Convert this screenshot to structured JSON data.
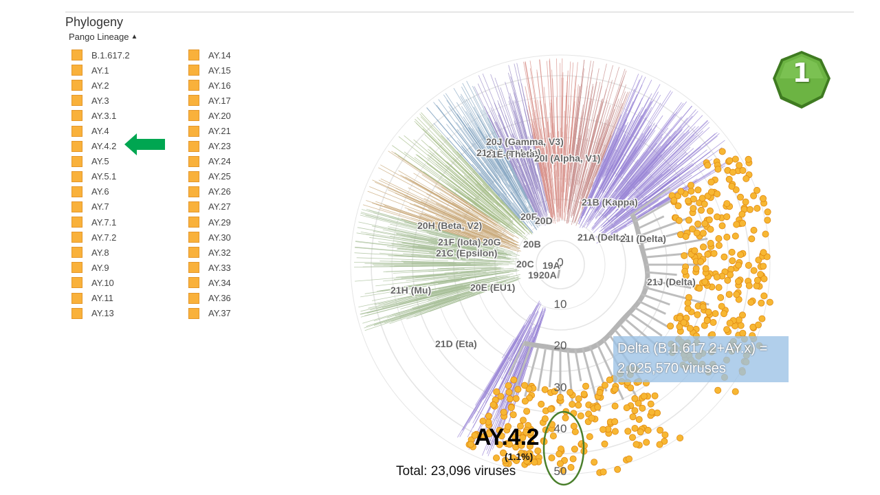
{
  "panel": {
    "title": "Phylogeny",
    "subtitle": "Pango Lineage",
    "legend_color": "#f9b13b",
    "legend_col1": [
      "B.1.617.2",
      "AY.1",
      "AY.2",
      "AY.3",
      "AY.3.1",
      "AY.4",
      "AY.4.2",
      "AY.5",
      "AY.5.1",
      "AY.6",
      "AY.7",
      "AY.7.1",
      "AY.7.2",
      "AY.8",
      "AY.9",
      "AY.10",
      "AY.11",
      "AY.13"
    ],
    "legend_col2": [
      "AY.14",
      "AY.15",
      "AY.16",
      "AY.17",
      "AY.20",
      "AY.21",
      "AY.23",
      "AY.24",
      "AY.25",
      "AY.26",
      "AY.27",
      "AY.29",
      "AY.30",
      "AY.32",
      "AY.33",
      "AY.34",
      "AY.36",
      "AY.37"
    ]
  },
  "arrow_color": "#00a651",
  "badge": {
    "number": "1",
    "color": "#5da63a"
  },
  "tree": {
    "radial_ticks": [
      "0",
      "10",
      "20",
      "30",
      "40",
      "50"
    ],
    "clade_labels": [
      "20J (Gamma, V3)",
      "21G (Lambda)",
      "21E (Theta)",
      "20I (Alpha, V1)",
      "21B (Kappa)",
      "20H (Beta, V2)",
      "20F",
      "20D",
      "21A (Delta)",
      "21I (Delta)",
      "21F (Iota)",
      "20G",
      "20B",
      "21C (Epsilon)",
      "20C",
      "19A",
      "19B",
      "20A",
      "21J (Delta)",
      "21H (Mu)",
      "20E (EU1)",
      "21D (Eta)"
    ],
    "delta_color": "#f7b733",
    "highlight_color": "#4a7f2c"
  },
  "annotations": {
    "delta_line1": "Delta (B.1.617.2+AY.x) =",
    "delta_line2": "2,025,570 viruses",
    "ay_label": "AY.4.2",
    "ay_pct": "(1.1%)",
    "total": "Total: 23,096 viruses"
  }
}
